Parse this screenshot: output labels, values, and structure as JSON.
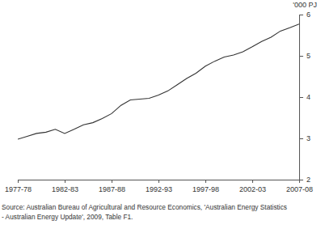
{
  "chart_data": {
    "type": "line",
    "y_label": "'000 PJ",
    "source": [
      "Source: Australian Bureau of Agricultural and Resource Economics, 'Australian Energy Statistics",
      "- Australian Energy Update', 2009, Table F1."
    ],
    "categories": [
      "1977-78",
      null,
      null,
      null,
      null,
      "1982-83",
      null,
      null,
      null,
      null,
      "1987-88",
      null,
      null,
      null,
      null,
      "1992-93",
      null,
      null,
      null,
      null,
      "1997-98",
      null,
      null,
      null,
      null,
      "2002-03",
      null,
      null,
      null,
      null,
      "2007-08"
    ],
    "values": [
      2.98,
      3.05,
      3.12,
      3.15,
      3.22,
      3.12,
      3.22,
      3.33,
      3.38,
      3.48,
      3.6,
      3.8,
      3.93,
      3.95,
      3.97,
      4.05,
      4.15,
      4.3,
      4.45,
      4.58,
      4.75,
      4.87,
      4.97,
      5.02,
      5.1,
      5.22,
      5.35,
      5.45,
      5.6,
      5.68,
      5.77
    ],
    "color": "#333333",
    "ylim": [
      2,
      6
    ],
    "yticks": [
      2,
      3,
      4,
      5,
      6
    ],
    "grid": false
  }
}
